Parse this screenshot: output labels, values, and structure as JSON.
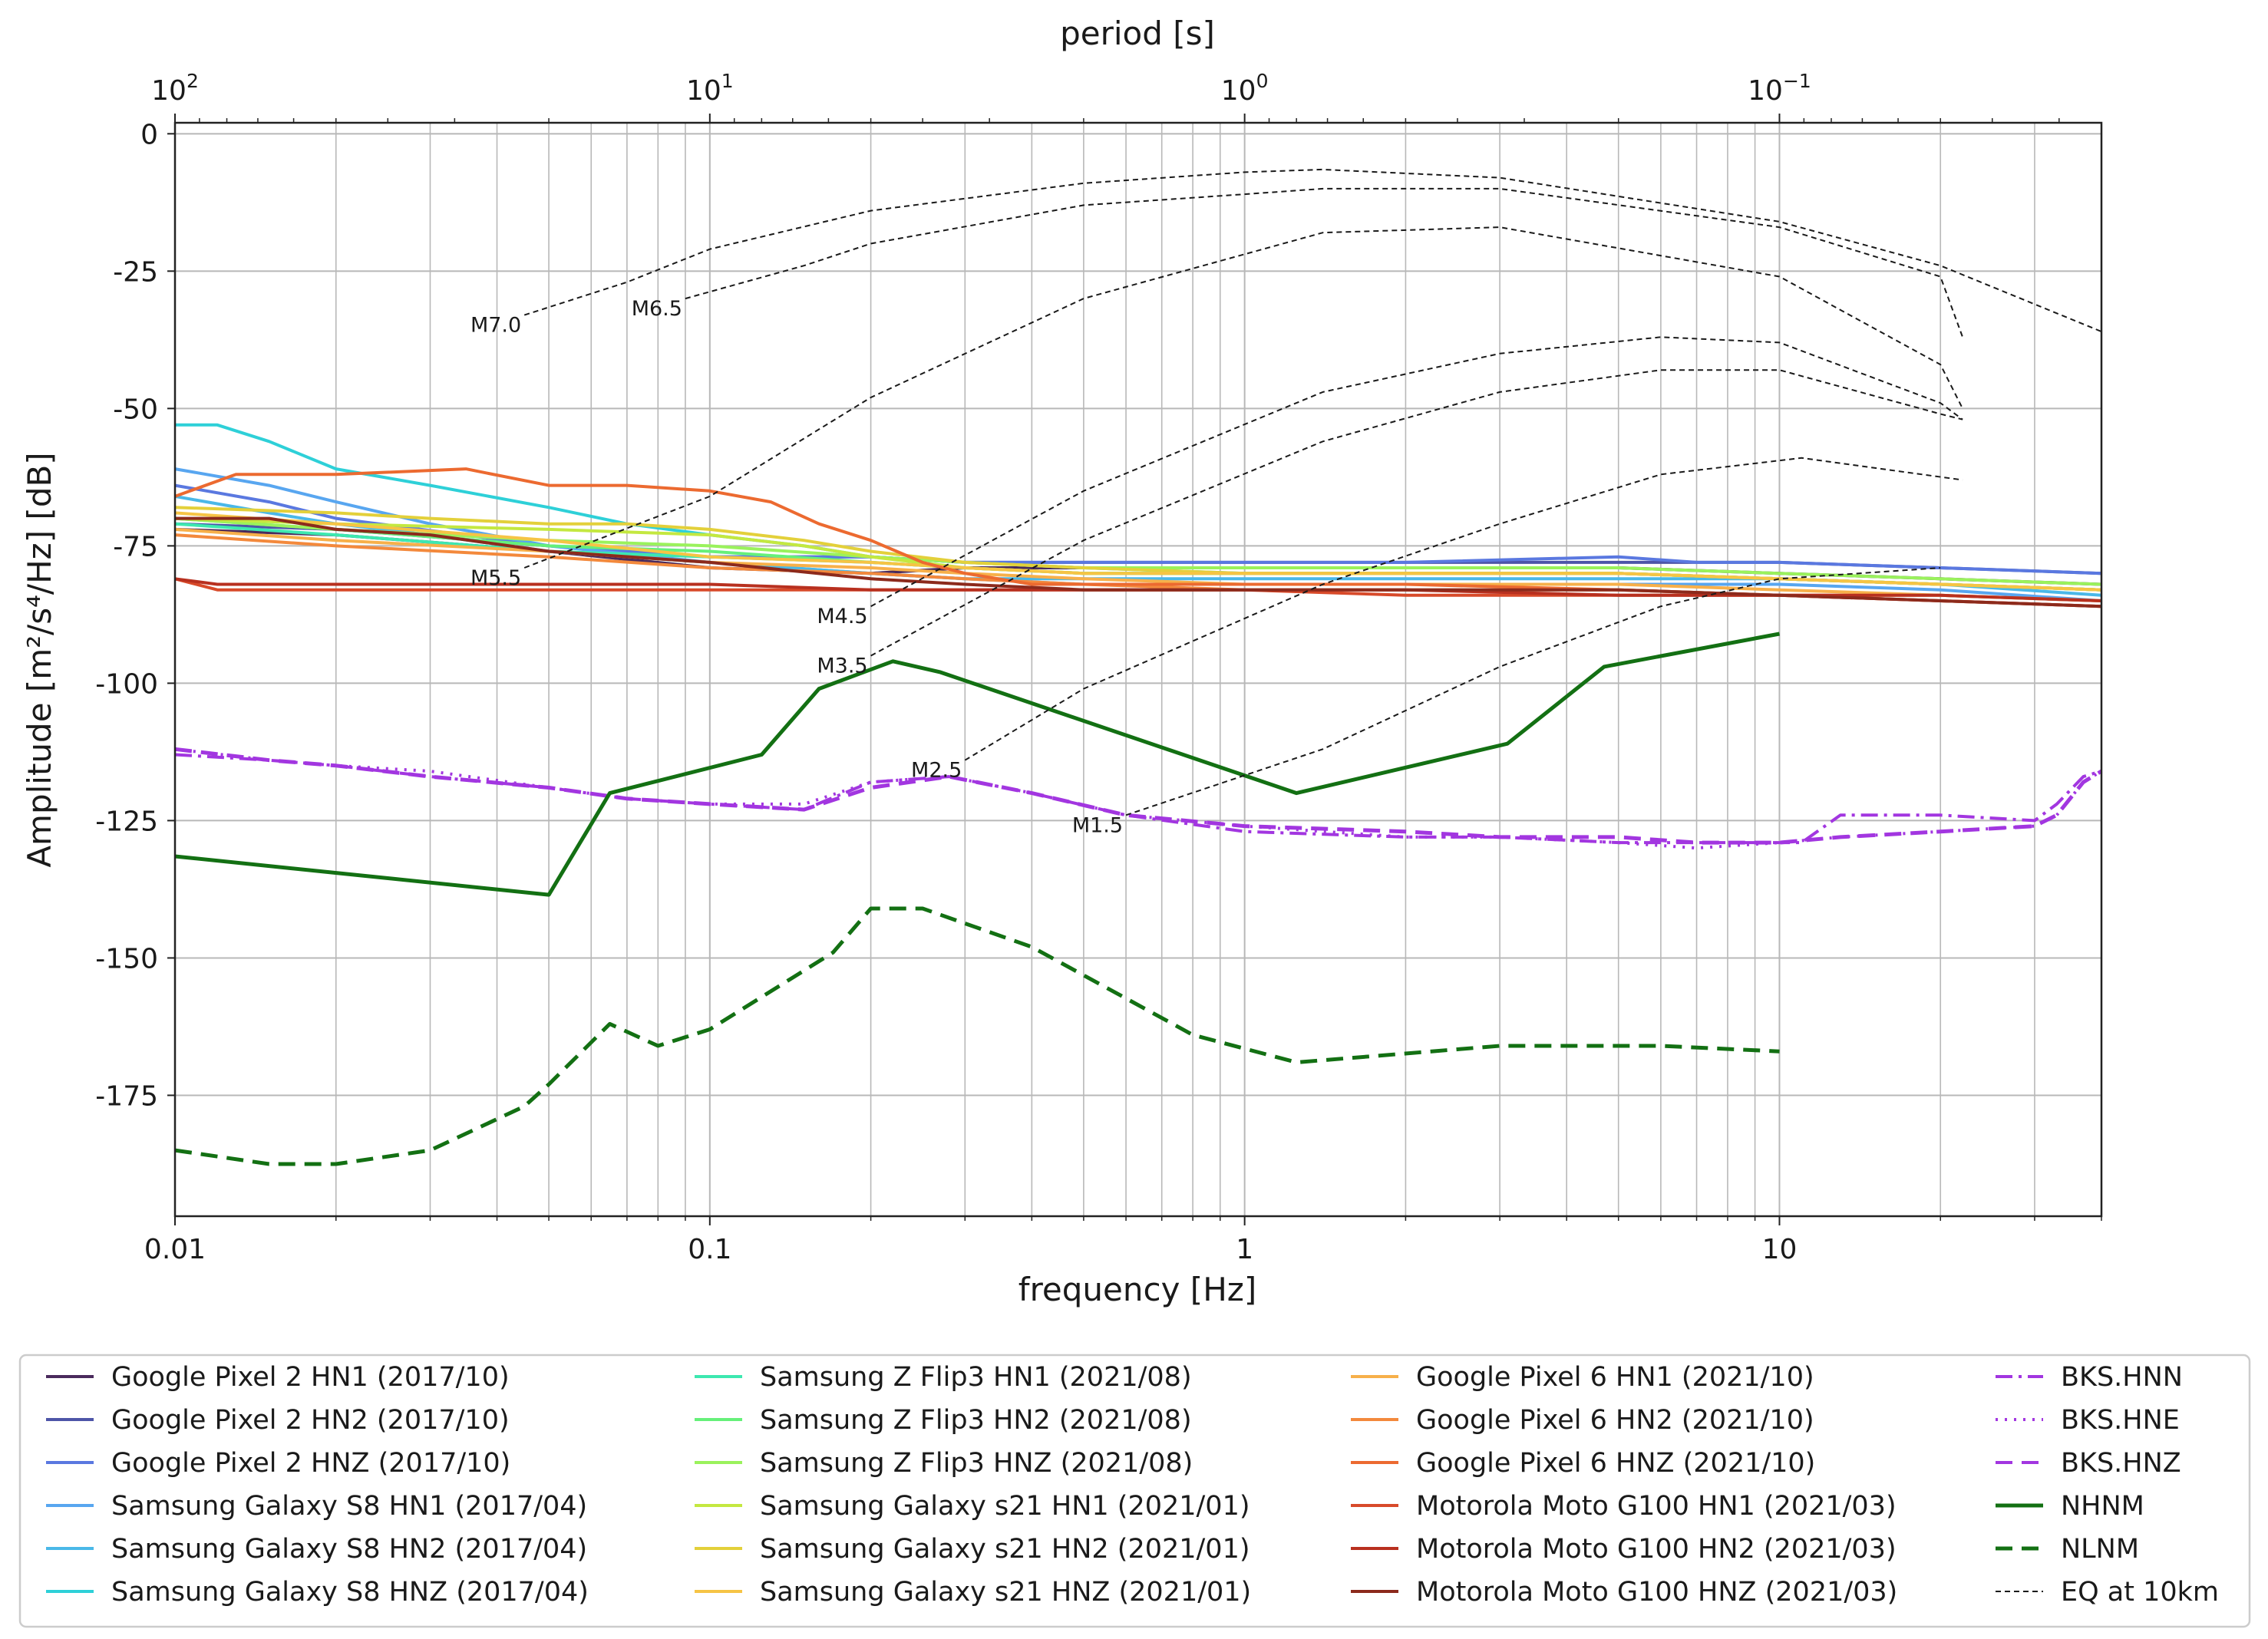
{
  "chart_data": {
    "type": "line",
    "xlabel": "frequency [Hz]",
    "ylabel": "Amplitude [m²/s⁴/Hz] [dB]",
    "top_axis_label": "period [s]",
    "xscale": "log",
    "xlim": [
      0.01,
      40
    ],
    "ylim": [
      -197,
      2
    ],
    "grid": true,
    "x_tick_labels": [
      "0.01",
      "0.1",
      "1",
      "10"
    ],
    "y_tick_labels": [
      "0",
      "-25",
      "-50",
      "-75",
      "-100",
      "-125",
      "-150",
      "-175"
    ],
    "y_ticks": [
      0,
      -25,
      -50,
      -75,
      -100,
      -125,
      -150,
      -175
    ],
    "top_tick_labels": [
      {
        "period": 100,
        "base": "10",
        "exp": "2"
      },
      {
        "period": 10,
        "base": "10",
        "exp": "1"
      },
      {
        "period": 1,
        "base": "10",
        "exp": "0"
      },
      {
        "period": 0.1,
        "base": "10",
        "exp": "−1"
      }
    ],
    "legend_position": "below",
    "series": [
      {
        "name": "Google Pixel 2 HN1 (2017/10)",
        "color": "#4a2a5c",
        "style": "solid",
        "x": [
          0.01,
          0.02,
          0.05,
          0.1,
          0.2,
          0.3,
          0.5,
          1,
          2,
          5,
          10,
          20,
          40
        ],
        "y": [
          -72,
          -73,
          -76,
          -79,
          -80,
          -79,
          -79,
          -79,
          -79,
          -79,
          -80,
          -81,
          -82
        ]
      },
      {
        "name": "Google Pixel 2 HN2 (2017/10)",
        "color": "#4d55a8",
        "style": "solid",
        "x": [
          0.01,
          0.02,
          0.05,
          0.1,
          0.2,
          0.3,
          0.5,
          1,
          2,
          5,
          7,
          10,
          20,
          40
        ],
        "y": [
          -71,
          -72,
          -75,
          -77,
          -77,
          -78,
          -78,
          -78,
          -78,
          -78,
          -78,
          -78,
          -79,
          -80
        ]
      },
      {
        "name": "Google Pixel 2 HNZ (2017/10)",
        "color": "#5a78e0",
        "style": "solid",
        "x": [
          0.01,
          0.015,
          0.02,
          0.05,
          0.1,
          0.2,
          0.3,
          0.5,
          1,
          2,
          5,
          7,
          10,
          20,
          40
        ],
        "y": [
          -64,
          -67,
          -70,
          -75,
          -77,
          -77,
          -78,
          -78,
          -78,
          -78,
          -77,
          -78,
          -78,
          -79,
          -80
        ]
      },
      {
        "name": "Samsung Galaxy S8 HN1 (2017/04)",
        "color": "#58a6f0",
        "style": "solid",
        "x": [
          0.01,
          0.015,
          0.02,
          0.03,
          0.05,
          0.1,
          0.2,
          0.3,
          0.5,
          1,
          2,
          5,
          10,
          20,
          40
        ],
        "y": [
          -61,
          -64,
          -67,
          -71,
          -75,
          -78,
          -80,
          -81,
          -82,
          -82,
          -82,
          -82,
          -82,
          -83,
          -85
        ]
      },
      {
        "name": "Samsung Galaxy S8 HN2 (2017/04)",
        "color": "#4ab8e8",
        "style": "solid",
        "x": [
          0.01,
          0.015,
          0.02,
          0.03,
          0.05,
          0.1,
          0.2,
          0.3,
          0.5,
          1,
          2,
          5,
          10,
          20,
          40
        ],
        "y": [
          -66,
          -69,
          -71,
          -73,
          -76,
          -78,
          -80,
          -81,
          -81,
          -81,
          -81,
          -81,
          -81,
          -82,
          -84
        ]
      },
      {
        "name": "Samsung Galaxy S8 HNZ (2017/04)",
        "color": "#2ed0d8",
        "style": "solid",
        "x": [
          0.01,
          0.012,
          0.015,
          0.02,
          0.03,
          0.05,
          0.07,
          0.1,
          0.15,
          0.2,
          0.3,
          0.5,
          1,
          2,
          5,
          10,
          20,
          40
        ],
        "y": [
          -53,
          -53,
          -56,
          -61,
          -64,
          -68,
          -71,
          -73,
          -75,
          -77,
          -78,
          -79,
          -80,
          -80,
          -80,
          -81,
          -82,
          -83
        ]
      },
      {
        "name": "Samsung Z Flip3 HN1 (2021/08)",
        "color": "#3de8b0",
        "style": "solid",
        "x": [
          0.01,
          0.02,
          0.05,
          0.1,
          0.2,
          0.3,
          0.5,
          1,
          2,
          5,
          10,
          20,
          40
        ],
        "y": [
          -71,
          -73,
          -76,
          -77,
          -78,
          -79,
          -80,
          -80,
          -80,
          -80,
          -81,
          -82,
          -83
        ]
      },
      {
        "name": "Samsung Z Flip3 HN2 (2021/08)",
        "color": "#66f07a",
        "style": "solid",
        "x": [
          0.01,
          0.02,
          0.05,
          0.1,
          0.2,
          0.3,
          0.5,
          1,
          2,
          5,
          10,
          20,
          40
        ],
        "y": [
          -70,
          -72,
          -75,
          -76,
          -78,
          -79,
          -80,
          -80,
          -80,
          -80,
          -81,
          -82,
          -83
        ]
      },
      {
        "name": "Samsung Z Flip3 HNZ (2021/08)",
        "color": "#9af25c",
        "style": "solid",
        "x": [
          0.01,
          0.02,
          0.05,
          0.1,
          0.2,
          0.3,
          0.5,
          1,
          2,
          5,
          10,
          20,
          40
        ],
        "y": [
          -70,
          -72,
          -74,
          -75,
          -77,
          -78,
          -79,
          -79,
          -79,
          -79,
          -80,
          -81,
          -82
        ]
      },
      {
        "name": "Samsung Galaxy s21 HN1 (2021/01)",
        "color": "#c4e840",
        "style": "solid",
        "x": [
          0.01,
          0.02,
          0.05,
          0.1,
          0.15,
          0.2,
          0.3,
          0.5,
          1,
          2,
          5,
          10,
          20,
          40
        ],
        "y": [
          -70,
          -71,
          -72,
          -73,
          -75,
          -77,
          -79,
          -80,
          -80,
          -80,
          -80,
          -81,
          -82,
          -83
        ]
      },
      {
        "name": "Samsung Galaxy s21 HN2 (2021/01)",
        "color": "#e3d03a",
        "style": "solid",
        "x": [
          0.01,
          0.02,
          0.03,
          0.05,
          0.07,
          0.1,
          0.15,
          0.2,
          0.3,
          0.5,
          1,
          2,
          5,
          10,
          20,
          40
        ],
        "y": [
          -68,
          -69,
          -70,
          -71,
          -71,
          -72,
          -74,
          -76,
          -78,
          -79,
          -80,
          -80,
          -80,
          -81,
          -82,
          -83
        ]
      },
      {
        "name": "Samsung Galaxy s21 HNZ (2021/01)",
        "color": "#f6c445",
        "style": "solid",
        "x": [
          0.01,
          0.02,
          0.05,
          0.1,
          0.2,
          0.3,
          0.5,
          1,
          2,
          5,
          10,
          20,
          40
        ],
        "y": [
          -69,
          -71,
          -74,
          -77,
          -78,
          -79,
          -80,
          -80,
          -80,
          -80,
          -81,
          -82,
          -83
        ]
      },
      {
        "name": "Google Pixel 6 HN1 (2021/10)",
        "color": "#f7b04a",
        "style": "solid",
        "x": [
          0.01,
          0.02,
          0.05,
          0.1,
          0.2,
          0.3,
          0.5,
          1,
          2,
          5,
          10,
          20,
          40
        ],
        "y": [
          -72,
          -74,
          -76,
          -78,
          -79,
          -80,
          -81,
          -82,
          -82,
          -82,
          -83,
          -84,
          -85
        ]
      },
      {
        "name": "Google Pixel 6 HN2 (2021/10)",
        "color": "#f3893c",
        "style": "solid",
        "x": [
          0.01,
          0.02,
          0.05,
          0.1,
          0.2,
          0.3,
          0.5,
          1,
          2,
          5,
          10,
          20,
          40
        ],
        "y": [
          -73,
          -75,
          -77,
          -79,
          -80,
          -81,
          -82,
          -83,
          -83,
          -83,
          -84,
          -84,
          -85
        ]
      },
      {
        "name": "Google Pixel 6 HNZ (2021/10)",
        "color": "#ec6a30",
        "style": "solid",
        "x": [
          0.01,
          0.013,
          0.02,
          0.035,
          0.05,
          0.07,
          0.1,
          0.13,
          0.16,
          0.2,
          0.25,
          0.3,
          0.4,
          0.5,
          1,
          2,
          5,
          10,
          20,
          40
        ],
        "y": [
          -66,
          -62,
          -62,
          -61,
          -64,
          -64,
          -65,
          -67,
          -71,
          -74,
          -78,
          -80,
          -82,
          -82,
          -82,
          -82,
          -83,
          -84,
          -85,
          -86
        ]
      },
      {
        "name": "Motorola Moto G100 HN1 (2021/03)",
        "color": "#d84a2a",
        "style": "solid",
        "x": [
          0.01,
          0.012,
          0.02,
          0.05,
          0.1,
          0.2,
          0.5,
          1,
          2,
          5,
          10,
          20,
          40
        ],
        "y": [
          -81,
          -83,
          -83,
          -83,
          -83,
          -83,
          -83,
          -83,
          -84,
          -84,
          -84,
          -85,
          -86
        ]
      },
      {
        "name": "Motorola Moto G100 HN2 (2021/03)",
        "color": "#b8301f",
        "style": "solid",
        "x": [
          0.01,
          0.012,
          0.02,
          0.05,
          0.1,
          0.2,
          0.5,
          1,
          2,
          5,
          10,
          20,
          40
        ],
        "y": [
          -81,
          -82,
          -82,
          -82,
          -82,
          -83,
          -83,
          -83,
          -83,
          -84,
          -84,
          -84,
          -85
        ]
      },
      {
        "name": "Motorola Moto G100 HNZ (2021/03)",
        "color": "#8c2a1c",
        "style": "solid",
        "x": [
          0.01,
          0.015,
          0.02,
          0.03,
          0.05,
          0.1,
          0.2,
          0.3,
          0.5,
          1,
          2,
          5,
          10,
          20,
          40
        ],
        "y": [
          -70,
          -70,
          -72,
          -73,
          -76,
          -78,
          -81,
          -82,
          -83,
          -83,
          -83,
          -83,
          -84,
          -85,
          -86
        ]
      },
      {
        "name": "BKS.HNN",
        "color": "#a236e0",
        "style": "dashdot",
        "x": [
          0.01,
          0.015,
          0.02,
          0.03,
          0.05,
          0.07,
          0.1,
          0.15,
          0.2,
          0.28,
          0.4,
          0.6,
          1,
          2,
          3,
          5,
          7,
          10,
          11,
          13,
          20,
          30,
          33,
          37,
          40
        ],
        "y": [
          -113,
          -114,
          -115,
          -117,
          -119,
          -121,
          -122,
          -123,
          -118,
          -117,
          -120,
          -124,
          -127,
          -128,
          -128,
          -129,
          -129,
          -129,
          -129,
          -124,
          -124,
          -125,
          -122,
          -117,
          -116
        ]
      },
      {
        "name": "BKS.HNE",
        "color": "#a236e0",
        "style": "dotted",
        "x": [
          0.01,
          0.015,
          0.02,
          0.03,
          0.05,
          0.07,
          0.1,
          0.15,
          0.2,
          0.28,
          0.4,
          0.6,
          1,
          2,
          3,
          5,
          7,
          10,
          13,
          20,
          30,
          33,
          37,
          40
        ],
        "y": [
          -112,
          -114,
          -115,
          -116,
          -119,
          -121,
          -122,
          -122,
          -118,
          -117,
          -120,
          -124,
          -126,
          -128,
          -128,
          -129,
          -130,
          -129,
          -128,
          -127,
          -126,
          -124,
          -118,
          -116
        ]
      },
      {
        "name": "BKS.HNZ",
        "color": "#a236e0",
        "style": "dashed",
        "x": [
          0.01,
          0.015,
          0.02,
          0.03,
          0.05,
          0.07,
          0.1,
          0.15,
          0.2,
          0.28,
          0.4,
          0.6,
          1,
          2,
          3,
          5,
          7,
          10,
          13,
          20,
          30,
          33,
          37,
          40
        ],
        "y": [
          -112,
          -114,
          -115,
          -117,
          -119,
          -121,
          -122,
          -123,
          -119,
          -117,
          -120,
          -124,
          -126,
          -127,
          -128,
          -128,
          -129,
          -129,
          -128,
          -127,
          -126,
          -124,
          -118,
          -116
        ]
      },
      {
        "name": "NHNM",
        "color": "#137013",
        "style": "solid",
        "x": [
          0.01,
          0.05,
          0.065,
          0.125,
          0.16,
          0.22,
          0.27,
          1.25,
          3.1,
          4.7,
          10
        ],
        "y": [
          -131.5,
          -138.5,
          -120,
          -113,
          -101,
          -96,
          -98,
          -120,
          -111,
          -97,
          -91
        ]
      },
      {
        "name": "NLNM",
        "color": "#137013",
        "style": "dashed",
        "x": [
          0.01,
          0.015,
          0.02,
          0.03,
          0.045,
          0.05,
          0.065,
          0.08,
          0.1,
          0.17,
          0.2,
          0.25,
          0.4,
          0.8,
          1.25,
          3,
          6,
          10
        ],
        "y": [
          -185,
          -187.5,
          -187.5,
          -185,
          -177,
          -173,
          -162,
          -166,
          -163,
          -149,
          -141,
          -141,
          -148,
          -164,
          -169,
          -166,
          -166,
          -167
        ]
      },
      {
        "name": "EQ at 10km",
        "color": "#1a1a1a",
        "style": "eqdash",
        "curves": [
          {
            "label": "M7.0",
            "x": [
              0.045,
              0.07,
              0.1,
              0.2,
              0.5,
              1,
              1.4,
              3,
              10,
              20,
              40
            ],
            "y": [
              -33,
              -27,
              -21,
              -14,
              -9,
              -7,
              -6.5,
              -8,
              -16,
              -24,
              -36
            ]
          },
          {
            "label": "M6.5",
            "x": [
              0.09,
              0.15,
              0.2,
              0.5,
              1,
              1.4,
              3,
              10,
              20,
              22
            ],
            "y": [
              -30,
              -24,
              -20,
              -13,
              -11,
              -10,
              -10,
              -17,
              -26,
              -37
            ]
          },
          {
            "label": "M5.5",
            "x": [
              0.045,
              0.1,
              0.2,
              0.5,
              1.4,
              3,
              10,
              20,
              22
            ],
            "y": [
              -79,
              -66,
              -48,
              -30,
              -18,
              -17,
              -26,
              -42,
              -50
            ]
          },
          {
            "label": "M4.5",
            "x": [
              0.2,
              0.5,
              1.4,
              3,
              6,
              10,
              20,
              22
            ],
            "y": [
              -86,
              -65,
              -47,
              -40,
              -37,
              -38,
              -49,
              -52
            ]
          },
          {
            "label": "M3.5",
            "x": [
              0.2,
              0.5,
              1.4,
              3,
              6,
              10,
              20,
              22
            ],
            "y": [
              -95,
              -74,
              -56,
              -47,
              -43,
              -43,
              -51,
              -52
            ]
          },
          {
            "label": "M2.5",
            "x": [
              0.3,
              0.5,
              1.4,
              3,
              6,
              11,
              22
            ],
            "y": [
              -114,
              -101,
              -82,
              -71,
              -62,
              -59,
              -63
            ]
          },
          {
            "label": "M1.5",
            "x": [
              0.6,
              1.4,
              3,
              6,
              10,
              20
            ],
            "y": [
              -124,
              -112,
              -97,
              -86,
              -81,
              -79
            ]
          }
        ]
      }
    ]
  }
}
